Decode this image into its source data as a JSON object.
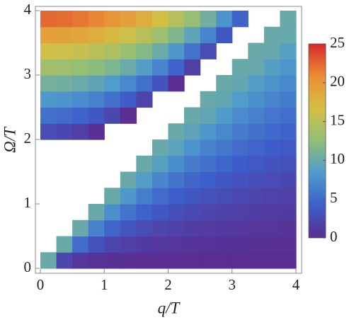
{
  "chart_data": {
    "type": "heatmap",
    "xlabel": "q/T",
    "ylabel": "Ω/T",
    "xlim": [
      0,
      4
    ],
    "ylim": [
      0,
      4
    ],
    "xticks": [
      0,
      1,
      2,
      3,
      4
    ],
    "yticks": [
      0,
      1,
      2,
      3,
      4
    ],
    "zlim": [
      0,
      25
    ],
    "zticks": [
      0,
      5,
      10,
      15,
      20,
      25
    ],
    "colormap": [
      "#5b2c8f",
      "#3d5fcb",
      "#4f9bcc",
      "#8fbf78",
      "#d4bf45",
      "#eb8f35",
      "#d7282b"
    ],
    "x": [
      0.125,
      0.375,
      0.625,
      0.875,
      1.125,
      1.375,
      1.625,
      1.875,
      2.125,
      2.375,
      2.625,
      2.875,
      3.125,
      3.375,
      3.625,
      3.875
    ],
    "y": [
      0.125,
      0.375,
      0.625,
      0.875,
      1.125,
      1.375,
      1.625,
      1.875,
      2.125,
      2.375,
      2.625,
      2.875,
      3.125,
      3.375,
      3.625,
      3.875
    ],
    "z": [
      [
        10,
        2.1,
        1.0,
        0.6,
        0.4,
        0.3,
        0.2,
        0.2,
        0.2,
        0.1,
        0.1,
        0.1,
        0.1,
        0.1,
        0.1,
        0.1
      ],
      [
        null,
        10,
        5.1,
        3.1,
        2.1,
        1.6,
        1.2,
        1.0,
        0.8,
        0.7,
        0.6,
        0.5,
        0.5,
        0.4,
        0.4,
        0.3
      ],
      [
        null,
        null,
        10,
        6.6,
        4.6,
        3.4,
        2.6,
        2.1,
        1.8,
        1.5,
        1.3,
        1.1,
        1.0,
        0.9,
        0.8,
        0.7
      ],
      [
        null,
        null,
        null,
        10,
        7.5,
        5.6,
        4.3,
        3.5,
        2.9,
        2.5,
        2.1,
        1.8,
        1.6,
        1.5,
        1.3,
        1.2
      ],
      [
        null,
        null,
        null,
        null,
        10,
        8.1,
        6.3,
        5.1,
        4.2,
        3.6,
        3.1,
        2.7,
        2.4,
        2.1,
        1.9,
        1.7
      ],
      [
        null,
        null,
        null,
        null,
        null,
        10,
        8.6,
        6.9,
        5.7,
        4.8,
        4.2,
        3.6,
        3.2,
        2.9,
        2.6,
        2.3
      ],
      [
        null,
        null,
        null,
        null,
        null,
        null,
        10,
        8.9,
        7.4,
        6.2,
        5.4,
        4.7,
        4.1,
        3.7,
        3.3,
        3.0
      ],
      [
        null,
        null,
        null,
        null,
        null,
        null,
        null,
        10,
        9.1,
        7.7,
        6.6,
        5.8,
        5.1,
        4.6,
        4.1,
        3.7
      ],
      [
        2.6,
        2.3,
        1.6,
        0.2,
        null,
        null,
        null,
        null,
        10,
        9.3,
        8.0,
        7.0,
        6.2,
        5.5,
        4.9,
        4.5
      ],
      [
        5.4,
        5.1,
        4.5,
        3.6,
        2.3,
        0.2,
        null,
        null,
        null,
        10,
        9.5,
        8.3,
        7.3,
        6.5,
        5.8,
        5.3
      ],
      [
        8.1,
        7.8,
        7.3,
        6.5,
        5.4,
        3.9,
        1.9,
        null,
        null,
        null,
        10,
        9.6,
        8.5,
        7.5,
        6.8,
        6.1
      ],
      [
        10.8,
        10.6,
        10.1,
        9.4,
        8.4,
        7.0,
        5.4,
        3.3,
        0.2,
        null,
        null,
        10,
        9.7,
        8.6,
        7.8,
        7.0
      ],
      [
        13.6,
        13.4,
        12.9,
        12.2,
        11.3,
        10.1,
        8.6,
        6.8,
        4.5,
        1.6,
        null,
        null,
        10,
        9.8,
        8.8,
        8.0
      ],
      [
        16.4,
        16.2,
        15.8,
        15.1,
        14.3,
        13.1,
        11.8,
        10.1,
        8.1,
        5.7,
        2.6,
        null,
        null,
        10,
        9.9,
        8.9
      ],
      [
        19.4,
        19.2,
        18.8,
        18.1,
        17.3,
        16.2,
        14.9,
        13.4,
        11.5,
        9.4,
        6.8,
        3.6,
        null,
        null,
        10,
        9.9
      ],
      [
        22.4,
        22.2,
        21.8,
        21.2,
        20.4,
        19.4,
        18.1,
        16.7,
        14.9,
        12.9,
        10.6,
        7.8,
        4.5,
        null,
        null,
        10
      ]
    ]
  }
}
